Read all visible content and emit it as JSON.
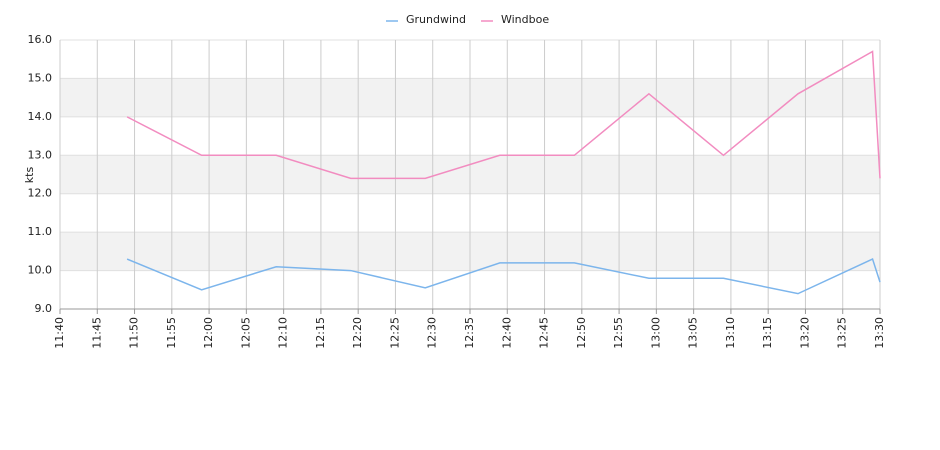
{
  "chart_data": {
    "type": "line",
    "y_label": "kts",
    "x": [
      "11:49",
      "11:59",
      "12:09",
      "12:19",
      "12:29",
      "12:39",
      "12:49",
      "12:59",
      "13:09",
      "13:19",
      "13:29",
      "13:30"
    ],
    "series": [
      {
        "name": "Grundwind",
        "color": "#7cb5ec",
        "values": [
          10.3,
          9.5,
          10.1,
          10.0,
          9.55,
          10.2,
          10.2,
          9.8,
          9.8,
          9.4,
          10.3,
          9.7
        ]
      },
      {
        "name": "Windboe",
        "color": "#f28cc0",
        "values": [
          14.0,
          13.0,
          13.0,
          12.4,
          12.4,
          13.0,
          13.0,
          14.6,
          13.0,
          14.6,
          15.7,
          12.4
        ]
      }
    ],
    "xlim": [
      "11:40",
      "13:30"
    ],
    "xticks": [
      "11:40",
      "11:45",
      "11:50",
      "11:55",
      "12:00",
      "12:05",
      "12:10",
      "12:15",
      "12:20",
      "12:25",
      "12:30",
      "12:35",
      "12:40",
      "12:45",
      "12:50",
      "12:55",
      "13:00",
      "13:05",
      "13:10",
      "13:15",
      "13:20",
      "13:25",
      "13:30"
    ],
    "ylim": [
      9,
      16
    ],
    "yticks": [
      {
        "value": 9,
        "label": "9.0"
      },
      {
        "value": 10,
        "label": "10.0"
      },
      {
        "value": 11,
        "label": "11.0"
      },
      {
        "value": 12,
        "label": "12.0"
      },
      {
        "value": 13,
        "label": "13.0"
      },
      {
        "value": 14,
        "label": "14.0"
      },
      {
        "value": 15,
        "label": "15.0"
      },
      {
        "value": 16,
        "label": "16.0"
      }
    ],
    "grid": true,
    "legend": "top"
  }
}
